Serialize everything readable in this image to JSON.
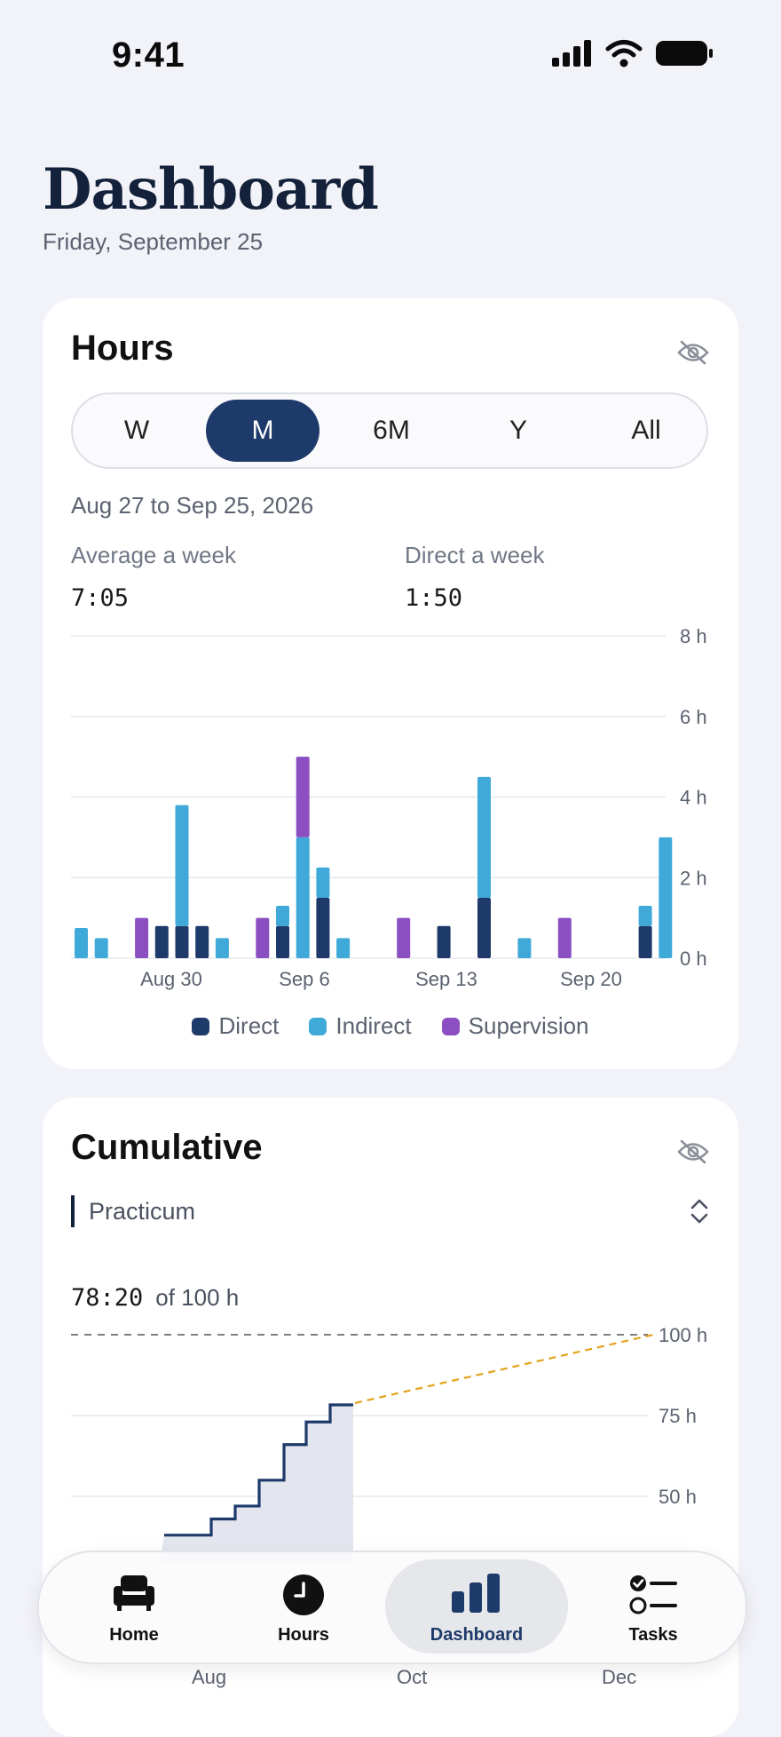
{
  "status": {
    "time": "9:41"
  },
  "page": {
    "title": "Dashboard",
    "date": "Friday, September 25"
  },
  "hours": {
    "title": "Hours",
    "segments": [
      "W",
      "M",
      "6M",
      "Y",
      "All"
    ],
    "selected_segment": "M",
    "range": "Aug 27 to Sep 25, 2026",
    "avg_label": "Average a week",
    "avg_value": "7:05",
    "direct_label": "Direct a week",
    "direct_value": "1:50"
  },
  "colors": {
    "direct": "#1E3A6A",
    "indirect": "#3FA9D9",
    "supervision": "#8B4FC1",
    "accent": "#1E3A6A",
    "projection": "#E3A21A"
  },
  "chart_data": [
    {
      "type": "bar",
      "stacked": true,
      "x_tick_labels": [
        "Aug 30",
        "Sep 6",
        "Sep 13",
        "Sep 20"
      ],
      "y_tick_labels": [
        "0 h",
        "2 h",
        "4 h",
        "6 h",
        "8 h"
      ],
      "ylim": [
        0,
        8
      ],
      "grid": true,
      "legend": "bottom",
      "series": [
        {
          "name": "Direct",
          "color": "#1E3A6A",
          "values": [
            0,
            0,
            0,
            0,
            0.8,
            0.8,
            0.8,
            0,
            0,
            0,
            0.8,
            0,
            1.5,
            0,
            0,
            0,
            0,
            0,
            0.8,
            0,
            1.5,
            0,
            0,
            0,
            0,
            0,
            0,
            0,
            0.8,
            0,
            0
          ]
        },
        {
          "name": "Indirect",
          "color": "#3FA9D9",
          "values": [
            0.75,
            0.5,
            0,
            0,
            0,
            3.0,
            0,
            0.5,
            0,
            0,
            0.5,
            3.0,
            0.75,
            0.5,
            0,
            0,
            0,
            0,
            0,
            0,
            3.0,
            0,
            0.5,
            0,
            0,
            0,
            0,
            0,
            0.5,
            3.0,
            0
          ]
        },
        {
          "name": "Supervision",
          "color": "#8B4FC1",
          "values": [
            0,
            0,
            0,
            1.0,
            0,
            0,
            0,
            0,
            0,
            1.0,
            0,
            2.0,
            0,
            0,
            0,
            0,
            1.0,
            0,
            0,
            0,
            0,
            0,
            0,
            0,
            1.0,
            0,
            0,
            0,
            0,
            0,
            0
          ]
        }
      ]
    },
    {
      "type": "area",
      "title": "Cumulative",
      "filter": "Practicum",
      "current_value": "78:20",
      "of_label": "of 100 h",
      "goal": 100,
      "y_tick_labels": [
        "50 h",
        "75 h",
        "100 h"
      ],
      "x_tick_labels": [
        "Aug",
        "Oct",
        "Dec"
      ],
      "series": [
        {
          "name": "Cumulative",
          "color": "#1E3A6A",
          "steps": [
            38,
            43,
            47,
            55,
            66,
            73,
            78.3
          ]
        },
        {
          "name": "Projection",
          "color": "#E3A21A",
          "from": 78.3,
          "to": 100
        }
      ]
    }
  ],
  "cumulative": {
    "title": "Cumulative",
    "filter_label": "Practicum",
    "value": "78:20",
    "of_label": "of 100 h"
  },
  "tabbar": {
    "home": "Home",
    "hours": "Hours",
    "dashboard": "Dashboard",
    "tasks": "Tasks"
  }
}
